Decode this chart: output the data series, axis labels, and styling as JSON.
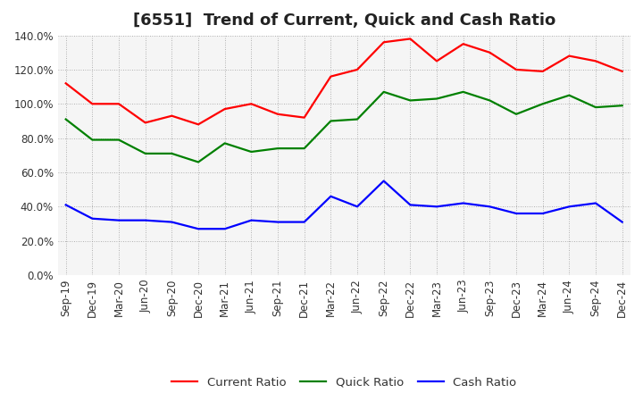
{
  "title": "[6551]  Trend of Current, Quick and Cash Ratio",
  "x_labels": [
    "Sep-19",
    "Dec-19",
    "Mar-20",
    "Jun-20",
    "Sep-20",
    "Dec-20",
    "Mar-21",
    "Jun-21",
    "Sep-21",
    "Dec-21",
    "Mar-22",
    "Jun-22",
    "Sep-22",
    "Dec-22",
    "Mar-23",
    "Jun-23",
    "Sep-23",
    "Dec-23",
    "Mar-24",
    "Jun-24",
    "Sep-24",
    "Dec-24"
  ],
  "current_ratio": [
    112,
    100,
    100,
    89,
    93,
    88,
    97,
    100,
    94,
    92,
    116,
    120,
    136,
    138,
    125,
    135,
    130,
    120,
    119,
    128,
    125,
    119
  ],
  "quick_ratio": [
    91,
    79,
    79,
    71,
    71,
    66,
    77,
    72,
    74,
    74,
    90,
    91,
    107,
    102,
    103,
    107,
    102,
    94,
    100,
    105,
    98,
    99
  ],
  "cash_ratio": [
    41,
    33,
    32,
    32,
    31,
    27,
    27,
    32,
    31,
    31,
    46,
    40,
    55,
    41,
    40,
    42,
    40,
    36,
    36,
    40,
    42,
    31
  ],
  "current_color": "#FF0000",
  "quick_color": "#008000",
  "cash_color": "#0000FF",
  "ylim": [
    0,
    140
  ],
  "yticks": [
    0,
    20,
    40,
    60,
    80,
    100,
    120,
    140
  ],
  "plot_bg_color": "#F5F5F5",
  "fig_bg_color": "#FFFFFF",
  "grid_color": "#999999",
  "title_fontsize": 13,
  "axis_fontsize": 8.5,
  "legend_fontsize": 9.5,
  "line_width": 1.6
}
